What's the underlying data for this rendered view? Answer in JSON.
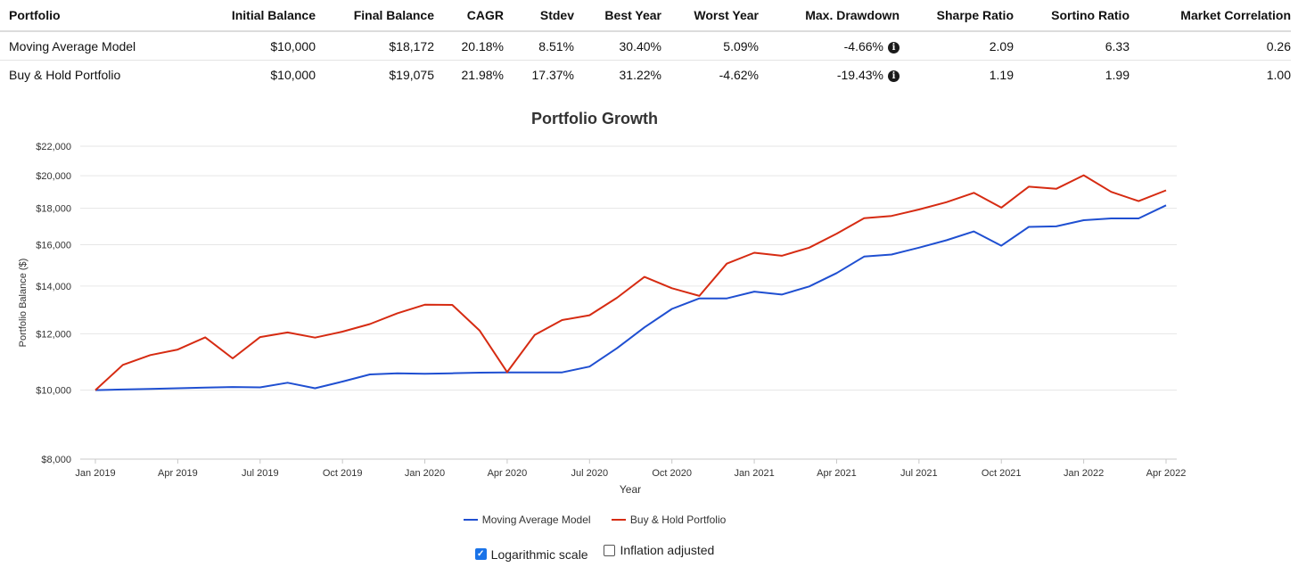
{
  "summary_table": {
    "headers": [
      "Portfolio",
      "Initial Balance",
      "Final Balance",
      "CAGR",
      "Stdev",
      "Best Year",
      "Worst Year",
      "Max. Drawdown",
      "Sharpe Ratio",
      "Sortino Ratio",
      "Market Correlation"
    ],
    "rows": [
      {
        "portfolio": "Moving Average Model",
        "initial_balance": "$10,000",
        "final_balance": "$18,172",
        "cagr": "20.18%",
        "stdev": "8.51%",
        "best_year": "30.40%",
        "worst_year": "5.09%",
        "max_drawdown": "-4.66%",
        "sharpe_ratio": "2.09",
        "sortino_ratio": "6.33",
        "market_correlation": "0.26"
      },
      {
        "portfolio": "Buy & Hold Portfolio",
        "initial_balance": "$10,000",
        "final_balance": "$19,075",
        "cagr": "21.98%",
        "stdev": "17.37%",
        "best_year": "31.22%",
        "worst_year": "-4.62%",
        "max_drawdown": "-19.43%",
        "sharpe_ratio": "1.19",
        "sortino_ratio": "1.99",
        "market_correlation": "1.00"
      }
    ],
    "drawdown_icon": "info-circle-icon"
  },
  "chart_data": {
    "type": "line",
    "title": "Portfolio Growth",
    "xlabel": "Year",
    "ylabel": "Portfolio Balance ($)",
    "y_scale": "log",
    "ylim": [
      8000,
      22000
    ],
    "y_ticks": [
      8000,
      10000,
      12000,
      14000,
      16000,
      18000,
      20000,
      22000
    ],
    "y_tick_labels": [
      "$8,000",
      "$10,000",
      "$12,000",
      "$14,000",
      "$16,000",
      "$18,000",
      "$20,000",
      "$22,000"
    ],
    "x_ticks": [
      "Jan 2019",
      "Apr 2019",
      "Jul 2019",
      "Oct 2019",
      "Jan 2020",
      "Apr 2020",
      "Jul 2020",
      "Oct 2020",
      "Jan 2021",
      "Apr 2021",
      "Jul 2021",
      "Oct 2021",
      "Jan 2022",
      "Apr 2022"
    ],
    "x": [
      "Jan 2019",
      "Feb 2019",
      "Mar 2019",
      "Apr 2019",
      "May 2019",
      "Jun 2019",
      "Jul 2019",
      "Aug 2019",
      "Sep 2019",
      "Oct 2019",
      "Nov 2019",
      "Dec 2019",
      "Jan 2020",
      "Feb 2020",
      "Mar 2020",
      "Apr 2020",
      "May 2020",
      "Jun 2020",
      "Jul 2020",
      "Aug 2020",
      "Sep 2020",
      "Oct 2020",
      "Nov 2020",
      "Dec 2020",
      "Jan 2021",
      "Feb 2021",
      "Mar 2021",
      "Apr 2021",
      "May 2021",
      "Jun 2021",
      "Jul 2021",
      "Aug 2021",
      "Sep 2021",
      "Oct 2021",
      "Nov 2021",
      "Dec 2021",
      "Jan 2022",
      "Feb 2022",
      "Mar 2022",
      "Apr 2022"
    ],
    "series": [
      {
        "name": "Moving Average Model",
        "color": "#1f4fd1",
        "values": [
          10000,
          10020,
          10040,
          10060,
          10080,
          10100,
          10090,
          10240,
          10060,
          10280,
          10520,
          10560,
          10540,
          10560,
          10580,
          10590,
          10590,
          10590,
          10790,
          11450,
          12250,
          13000,
          13450,
          13450,
          13750,
          13620,
          13980,
          14600,
          15400,
          15500,
          15850,
          16230,
          16700,
          15950,
          16950,
          16980,
          17320,
          17420,
          17420,
          18172
        ]
      },
      {
        "name": "Buy & Hold Portfolio",
        "color": "#d62b12",
        "values": [
          10000,
          10850,
          11200,
          11400,
          11860,
          11080,
          11870,
          12050,
          11850,
          12080,
          12380,
          12820,
          13180,
          13170,
          12120,
          10600,
          11950,
          12540,
          12740,
          13480,
          14420,
          13900,
          13560,
          15050,
          15590,
          15440,
          15850,
          16580,
          17430,
          17560,
          17930,
          18360,
          18920,
          18040,
          19300,
          19170,
          20030,
          18980,
          18420,
          19075
        ]
      }
    ],
    "legend": "bottom-center",
    "grid": true
  },
  "options": [
    {
      "label": "Logarithmic scale",
      "checked": true
    },
    {
      "label": "Inflation adjusted",
      "checked": false
    }
  ]
}
